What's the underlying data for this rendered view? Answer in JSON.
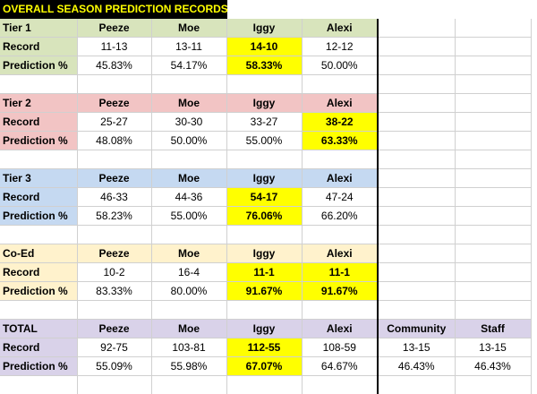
{
  "title": "OVERALL SEASON PREDICTION RECORDS",
  "colors": {
    "highlight": "#ffff00",
    "tier1": "#d8e4bc",
    "tier2": "#f2c4c4",
    "tier3": "#c5d9f1",
    "coed": "#fff2cc",
    "total": "#d9d2e9"
  },
  "sections": [
    {
      "name": "Tier 1",
      "color_key": "tier1",
      "headers": [
        "Peeze",
        "Moe",
        "Iggy",
        "Alexi",
        "",
        ""
      ],
      "rows": [
        {
          "label": "Record",
          "values": [
            "11-13",
            "13-11",
            "14-10",
            "12-12",
            "",
            ""
          ],
          "highlight": [
            false,
            false,
            true,
            false,
            false,
            false
          ]
        },
        {
          "label": "Prediction %",
          "values": [
            "45.83%",
            "54.17%",
            "58.33%",
            "50.00%",
            "",
            ""
          ],
          "highlight": [
            false,
            false,
            true,
            false,
            false,
            false
          ]
        }
      ]
    },
    {
      "name": "Tier 2",
      "color_key": "tier2",
      "headers": [
        "Peeze",
        "Moe",
        "Iggy",
        "Alexi",
        "",
        ""
      ],
      "rows": [
        {
          "label": "Record",
          "values": [
            "25-27",
            "30-30",
            "33-27",
            "38-22",
            "",
            ""
          ],
          "highlight": [
            false,
            false,
            false,
            true,
            false,
            false
          ]
        },
        {
          "label": "Prediction %",
          "values": [
            "48.08%",
            "50.00%",
            "55.00%",
            "63.33%",
            "",
            ""
          ],
          "highlight": [
            false,
            false,
            false,
            true,
            false,
            false
          ]
        }
      ]
    },
    {
      "name": "Tier 3",
      "color_key": "tier3",
      "headers": [
        "Peeze",
        "Moe",
        "Iggy",
        "Alexi",
        "",
        ""
      ],
      "rows": [
        {
          "label": "Record",
          "values": [
            "46-33",
            "44-36",
            "54-17",
            "47-24",
            "",
            ""
          ],
          "highlight": [
            false,
            false,
            true,
            false,
            false,
            false
          ]
        },
        {
          "label": "Prediction %",
          "values": [
            "58.23%",
            "55.00%",
            "76.06%",
            "66.20%",
            "",
            ""
          ],
          "highlight": [
            false,
            false,
            true,
            false,
            false,
            false
          ]
        }
      ]
    },
    {
      "name": "Co-Ed",
      "color_key": "coed",
      "headers": [
        "Peeze",
        "Moe",
        "Iggy",
        "Alexi",
        "",
        ""
      ],
      "rows": [
        {
          "label": "Record",
          "values": [
            "10-2",
            "16-4",
            "11-1",
            "11-1",
            "",
            ""
          ],
          "highlight": [
            false,
            false,
            true,
            true,
            false,
            false
          ]
        },
        {
          "label": "Prediction %",
          "values": [
            "83.33%",
            "80.00%",
            "91.67%",
            "91.67%",
            "",
            ""
          ],
          "highlight": [
            false,
            false,
            true,
            true,
            false,
            false
          ]
        }
      ]
    },
    {
      "name": "TOTAL",
      "color_key": "total",
      "headers": [
        "Peeze",
        "Moe",
        "Iggy",
        "Alexi",
        "Community",
        "Staff"
      ],
      "rows": [
        {
          "label": "Record",
          "values": [
            "92-75",
            "103-81",
            "112-55",
            "108-59",
            "13-15",
            "13-15"
          ],
          "highlight": [
            false,
            false,
            true,
            false,
            false,
            false
          ]
        },
        {
          "label": "Prediction %",
          "values": [
            "55.09%",
            "55.98%",
            "67.07%",
            "64.67%",
            "46.43%",
            "46.43%"
          ],
          "highlight": [
            false,
            false,
            true,
            false,
            false,
            false
          ]
        }
      ]
    }
  ]
}
